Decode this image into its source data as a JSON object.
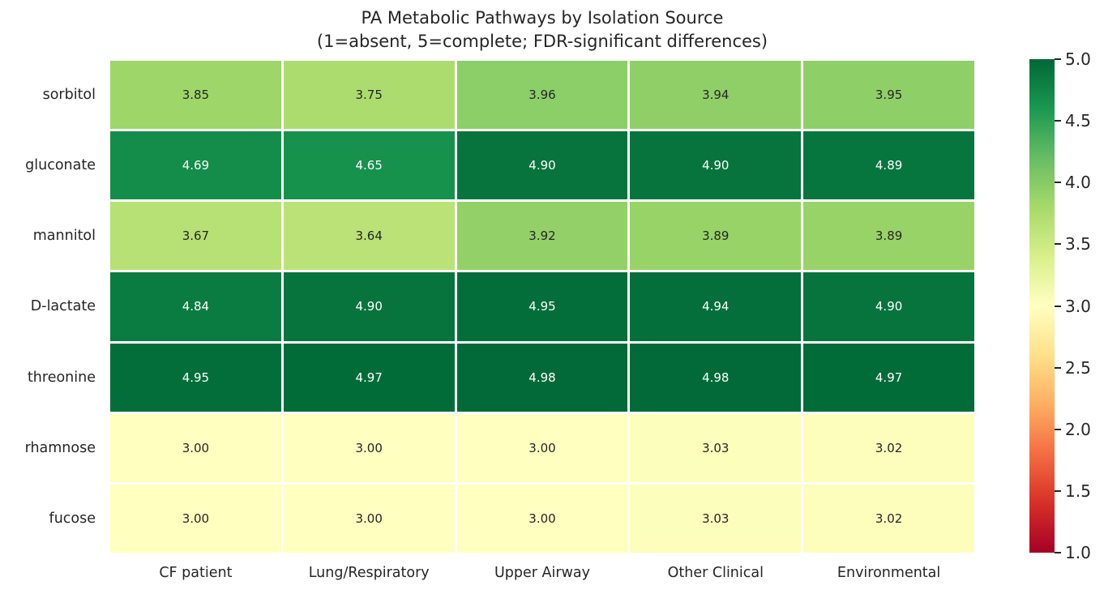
{
  "chart_data": {
    "type": "heatmap",
    "title": "PA Metabolic Pathways by Isolation Source",
    "subtitle": "(1=absent, 5=complete; FDR-significant differences)",
    "rows": [
      "sorbitol",
      "gluconate",
      "mannitol",
      "D-lactate",
      "threonine",
      "rhamnose",
      "fucose"
    ],
    "columns": [
      "CF patient",
      "Lung/Respiratory",
      "Upper Airway",
      "Other Clinical",
      "Environmental"
    ],
    "values": [
      [
        3.85,
        3.75,
        3.96,
        3.94,
        3.95
      ],
      [
        4.69,
        4.65,
        4.9,
        4.9,
        4.89
      ],
      [
        3.67,
        3.64,
        3.92,
        3.89,
        3.89
      ],
      [
        4.84,
        4.9,
        4.95,
        4.94,
        4.9
      ],
      [
        4.95,
        4.97,
        4.98,
        4.98,
        4.97
      ],
      [
        3.0,
        3.0,
        3.0,
        3.03,
        3.02
      ],
      [
        3.0,
        3.0,
        3.0,
        3.03,
        3.02
      ]
    ],
    "vmin": 1.0,
    "vmax": 5.0,
    "value_decimals": 2,
    "colormap": "RdYlGn",
    "colormap_stops": [
      "#a50026",
      "#d73027",
      "#f46d43",
      "#fdae61",
      "#fee08b",
      "#ffffbf",
      "#d9ef8b",
      "#a6d96a",
      "#66bd63",
      "#1a9850",
      "#006837"
    ],
    "colorbar_ticks": [
      5.0,
      4.5,
      4.0,
      3.5,
      3.0,
      2.5,
      2.0,
      1.5,
      1.0
    ],
    "colorbar_tick_decimals": 1,
    "legend_position": "right",
    "grid": false,
    "annotation_color_dark": "#262626",
    "annotation_color_light": "#ffffff"
  }
}
